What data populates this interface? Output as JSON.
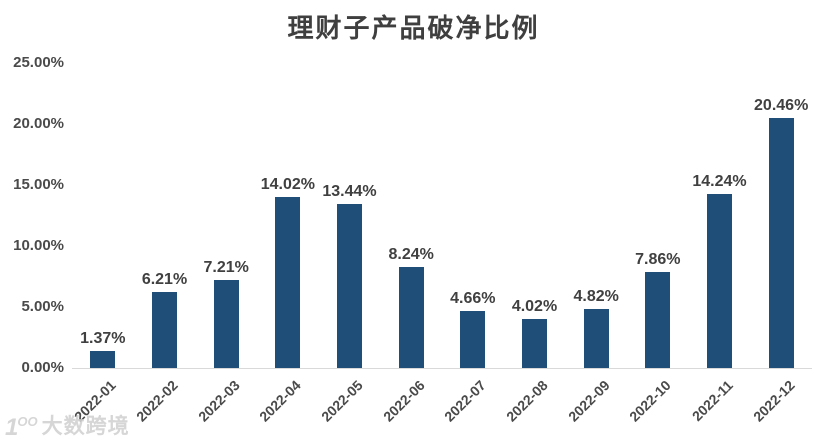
{
  "chart_data": {
    "type": "bar",
    "title": "理财子产品破净比例",
    "categories": [
      "2022-01",
      "2022-02",
      "2022-03",
      "2022-04",
      "2022-05",
      "2022-06",
      "2022-07",
      "2022-08",
      "2022-09",
      "2022-10",
      "2022-11",
      "2022-12"
    ],
    "values": [
      1.37,
      6.21,
      7.21,
      14.02,
      13.44,
      8.24,
      4.66,
      4.02,
      4.82,
      7.86,
      14.24,
      20.46
    ],
    "data_labels": [
      "1.37%",
      "6.21%",
      "7.21%",
      "14.02%",
      "13.44%",
      "8.24%",
      "4.66%",
      "4.02%",
      "4.82%",
      "7.86%",
      "14.24%",
      "20.46%"
    ],
    "xlabel": "",
    "ylabel": "",
    "ylim": [
      0,
      25
    ],
    "y_tick_labels": [
      "0.00%",
      "5.00%",
      "10.00%",
      "15.00%",
      "20.00%",
      "25.00%"
    ],
    "y_tick_values": [
      0,
      5,
      10,
      15,
      20,
      25
    ],
    "grid": false,
    "legend_position": "none",
    "bar_color": "#1f4e79",
    "title_color": "#3f3f3f",
    "label_color": "#404040",
    "tick_color": "#4a4a4a",
    "axis_line_color": "#d9d9d9"
  },
  "watermark": {
    "logo_text": "1",
    "logo_sup": "OO",
    "text": "大数跨境"
  }
}
